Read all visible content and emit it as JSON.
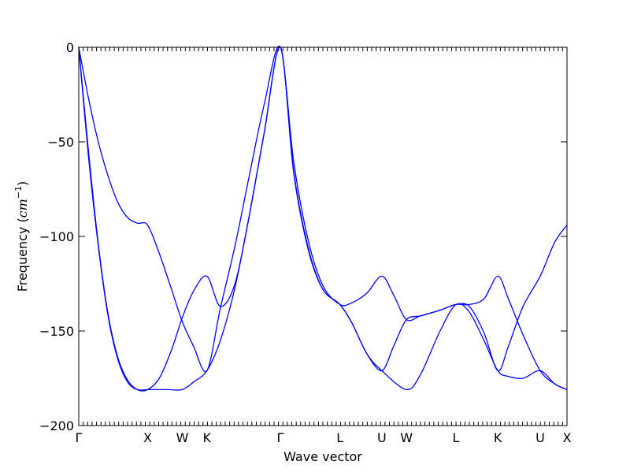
{
  "chart_data": {
    "type": "line",
    "title": "",
    "xlabel": "Wave vector",
    "ylabel_text": "Frequency (",
    "ylabel_math": "cm",
    "ylabel_sup": "−1",
    "ylabel_close": ")",
    "ylim": [
      -200,
      0
    ],
    "yticks": [
      0,
      -50,
      -100,
      -150,
      -200
    ],
    "ytick_labels": [
      "0",
      "−50",
      "−100",
      "−150",
      "−200"
    ],
    "xlim": [
      0,
      1
    ],
    "grid": false,
    "line_color": "#0000ff",
    "high_symmetry_points": [
      {
        "label": "Γ",
        "x": 0.0
      },
      {
        "label": "X",
        "x": 0.1412
      },
      {
        "label": "W",
        "x": 0.2121
      },
      {
        "label": "K",
        "x": 0.2625
      },
      {
        "label": "Γ",
        "x": 0.4129
      },
      {
        "label": "L",
        "x": 0.5351
      },
      {
        "label": "U",
        "x": 0.6208
      },
      {
        "label": "W",
        "x": 0.6712
      },
      {
        "label": "L",
        "x": 0.7726
      },
      {
        "label": "K",
        "x": 0.8583
      },
      {
        "label": "U",
        "x": 0.9451
      },
      {
        "label": "X",
        "x": 1.0
      }
    ],
    "series": [
      {
        "x": [
          0.0,
          0.02,
          0.04,
          0.06,
          0.08,
          0.1,
          0.12,
          0.141,
          0.16,
          0.185,
          0.212,
          0.235,
          0.2625,
          0.29,
          0.32,
          0.35,
          0.38,
          0.413,
          0.44,
          0.47,
          0.5,
          0.535,
          0.56,
          0.59,
          0.6208,
          0.6712,
          0.7,
          0.74,
          0.7726,
          0.8,
          0.83,
          0.8583,
          0.88,
          0.91,
          0.9451,
          0.975,
          1.0
        ],
        "y": [
          0,
          -58,
          -105,
          -142,
          -165,
          -177,
          -181,
          -181,
          -181,
          -181,
          -181,
          -177,
          -171,
          -155,
          -127,
          -88,
          -45,
          0,
          -66,
          -107,
          -128,
          -136,
          -146,
          -162,
          -171,
          -181,
          -173,
          -150,
          -136,
          -140,
          -155,
          -171,
          -174,
          -175,
          -171,
          -178,
          -181
        ]
      },
      {
        "x": [
          0.0,
          0.02,
          0.04,
          0.06,
          0.08,
          0.1,
          0.12,
          0.141,
          0.165,
          0.19,
          0.212,
          0.235,
          0.2625,
          0.29,
          0.32,
          0.35,
          0.38,
          0.413,
          0.44,
          0.47,
          0.5,
          0.535,
          0.56,
          0.59,
          0.6208,
          0.645,
          0.6712,
          0.7,
          0.74,
          0.7726,
          0.8,
          0.83,
          0.8583,
          0.88,
          0.91,
          0.9451,
          0.975,
          1.0
        ],
        "y": [
          0,
          -55,
          -104,
          -141,
          -164,
          -176,
          -181,
          -181,
          -175,
          -160,
          -143,
          -129,
          -121,
          -137,
          -125,
          -88,
          -45,
          0,
          -65,
          -106,
          -128,
          -136,
          -146,
          -162,
          -171,
          -158,
          -144,
          -142,
          -139,
          -136,
          -136,
          -133,
          -121,
          -133,
          -152,
          -171,
          -178,
          -181
        ]
      },
      {
        "x": [
          0.0,
          0.02,
          0.04,
          0.06,
          0.08,
          0.1,
          0.12,
          0.141,
          0.165,
          0.19,
          0.212,
          0.235,
          0.2625,
          0.29,
          0.32,
          0.35,
          0.38,
          0.413,
          0.44,
          0.47,
          0.5,
          0.535,
          0.56,
          0.59,
          0.6208,
          0.645,
          0.6712,
          0.7,
          0.74,
          0.7726,
          0.8,
          0.83,
          0.8583,
          0.88,
          0.91,
          0.9451,
          0.975,
          1.0
        ],
        "y": [
          0,
          -27,
          -50,
          -68,
          -82,
          -90,
          -93,
          -94,
          -109,
          -128,
          -145,
          -158,
          -171,
          -138,
          -105,
          -67,
          -30,
          0,
          -60,
          -102,
          -126,
          -136,
          -135,
          -130,
          -121,
          -131,
          -144,
          -142,
          -139,
          -136,
          -137,
          -151,
          -171,
          -158,
          -137,
          -121,
          -103,
          -94
        ]
      }
    ]
  }
}
